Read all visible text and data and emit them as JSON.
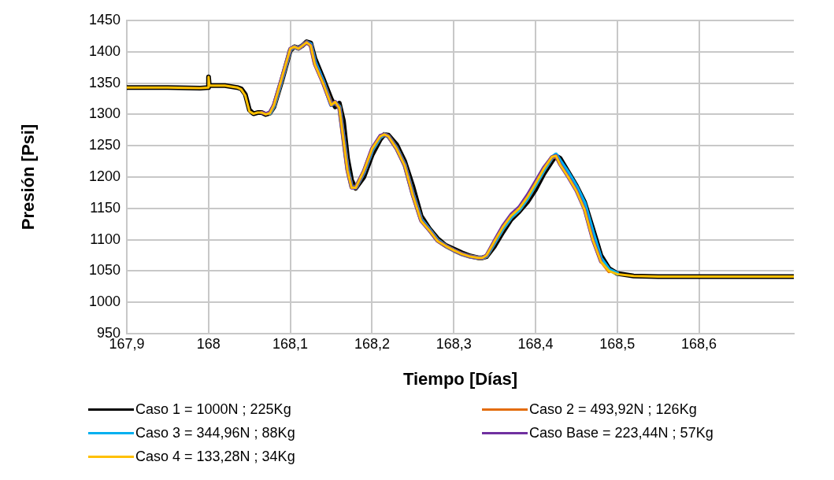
{
  "chart_data": {
    "type": "line",
    "xlabel": "Tiempo [Días]",
    "ylabel": "Presión [Psi]",
    "x": [
      167.9,
      167.95,
      167.99,
      168.0,
      168.0,
      168.001,
      168.02,
      168.035,
      168.04,
      168.045,
      168.05,
      168.055,
      168.06,
      168.065,
      168.07,
      168.075,
      168.08,
      168.09,
      168.1,
      168.105,
      168.11,
      168.115,
      168.12,
      168.125,
      168.13,
      168.14,
      168.15,
      168.155,
      168.16,
      168.165,
      168.17,
      168.175,
      168.18,
      168.19,
      168.2,
      168.21,
      168.215,
      168.22,
      168.23,
      168.24,
      168.25,
      168.26,
      168.27,
      168.28,
      168.29,
      168.3,
      168.31,
      168.32,
      168.33,
      168.335,
      168.34,
      168.35,
      168.36,
      168.37,
      168.38,
      168.39,
      168.4,
      168.41,
      168.42,
      168.425,
      168.43,
      168.44,
      168.45,
      168.46,
      168.47,
      168.48,
      168.49,
      168.5,
      168.52,
      168.55,
      168.6,
      168.65,
      168.716
    ],
    "series": [
      {
        "name": "Caso 1 = 1000N ; 225Kg",
        "color": "#000000",
        "values": [
          1343,
          1343,
          1342,
          1343,
          1360,
          1346,
          1346,
          1343,
          1341,
          1332,
          1307,
          1301,
          1303,
          1303,
          1300,
          1302,
          1312,
          1355,
          1402,
          1408,
          1406,
          1410,
          1416,
          1414,
          1390,
          1358,
          1325,
          1312,
          1318,
          1290,
          1230,
          1195,
          1182,
          1200,
          1235,
          1260,
          1268,
          1267,
          1252,
          1225,
          1185,
          1138,
          1118,
          1102,
          1091,
          1085,
          1079,
          1074,
          1071,
          1071,
          1073,
          1090,
          1112,
          1132,
          1145,
          1160,
          1180,
          1205,
          1225,
          1234,
          1230,
          1208,
          1186,
          1160,
          1118,
          1075,
          1054,
          1046,
          1042,
          1041,
          1041,
          1041,
          1041
        ]
      },
      {
        "name": "Caso 2 = 493,92N ; 126Kg",
        "color": "#e36c0a",
        "values": [
          null,
          null,
          null,
          null,
          null,
          null,
          null,
          null,
          null,
          null,
          null,
          null,
          null,
          null,
          null,
          1302,
          1314,
          1358,
          1404,
          1408,
          1405,
          1410,
          1415,
          1411,
          1382,
          1352,
          1317,
          1318,
          1312,
          1262,
          1212,
          1184,
          1183,
          1208,
          1243,
          1264,
          1268,
          1265,
          1246,
          1219,
          1172,
          1132,
          1116,
          1099,
          1090,
          1083,
          1077,
          1073,
          1071,
          1071,
          1074,
          1096,
          1118,
          1136,
          1148,
          1166,
          1188,
          1211,
          1231,
          1234,
          1222,
          1203,
          1181,
          1152,
          1104,
          1067,
          1050,
          null,
          null,
          null,
          null,
          null,
          null
        ]
      },
      {
        "name": "Caso 3 = 344,96N ; 88Kg",
        "color": "#00b0f0",
        "values": [
          null,
          null,
          null,
          null,
          null,
          null,
          null,
          null,
          null,
          null,
          null,
          null,
          null,
          null,
          null,
          1302,
          1314,
          1358,
          1404,
          1408,
          1405,
          1410,
          1415,
          1412,
          1384,
          1353,
          1315,
          1319,
          1312,
          1263,
          1213,
          1184,
          1183,
          1208,
          1243,
          1264,
          1268,
          1265,
          1246,
          1219,
          1172,
          1132,
          1116,
          1099,
          1090,
          1083,
          1077,
          1073,
          1071,
          1071,
          1074,
          1096,
          1118,
          1136,
          1148,
          1166,
          1188,
          1211,
          1231,
          1236,
          1226,
          1207,
          1185,
          1158,
          1112,
          1070,
          1052,
          1046,
          null,
          null,
          null,
          null,
          null
        ]
      },
      {
        "name": "Caso Base = 223,44N ; 57Kg",
        "color": "#7030a0",
        "values": [
          null,
          null,
          null,
          null,
          null,
          null,
          null,
          null,
          null,
          null,
          null,
          null,
          null,
          1303,
          1301,
          1303,
          1316,
          1360,
          1405,
          1408,
          1405,
          1410,
          1415,
          1410,
          1380,
          1350,
          1315,
          1320,
          1310,
          1260,
          1210,
          1183,
          1183,
          1210,
          1246,
          1266,
          1268,
          1265,
          1245,
          1218,
          1170,
          1130,
          1115,
          1098,
          1090,
          1083,
          1077,
          1073,
          1071,
          1071,
          1075,
          1099,
          1122,
          1140,
          1152,
          1171,
          1193,
          1215,
          1232,
          1234,
          1220,
          1200,
          1178,
          1148,
          1100,
          1065,
          null,
          null,
          null,
          null,
          null,
          null,
          null
        ]
      },
      {
        "name": "Caso 4 = 133,28N ; 34Kg",
        "color": "#ffc000",
        "values": [
          1343,
          1343,
          1342,
          1343,
          1360,
          1346,
          1346,
          1343,
          1340,
          1330,
          1305,
          1301,
          1303,
          1303,
          1300,
          1302,
          1315,
          1360,
          1405,
          1408,
          1405,
          1410,
          1415,
          1410,
          1380,
          1350,
          1315,
          1320,
          1310,
          1260,
          1210,
          1183,
          1183,
          1210,
          1245,
          1265,
          1268,
          1265,
          1245,
          1218,
          1170,
          1130,
          1115,
          1098,
          1090,
          1083,
          1077,
          1073,
          1071,
          1071,
          1075,
          1098,
          1120,
          1138,
          1150,
          1168,
          1190,
          1213,
          1232,
          1234,
          1220,
          1200,
          1178,
          1148,
          1100,
          1065,
          1050,
          1045,
          1042,
          1041,
          1041,
          1041,
          1041
        ]
      }
    ],
    "xlim": [
      167.9,
      168.716
    ],
    "xticks": [
      {
        "value": 167.9,
        "label": "167,9"
      },
      168,
      {
        "value": 168.1,
        "label": "168,1"
      },
      {
        "value": 168.2,
        "label": "168,2"
      },
      {
        "value": 168.3,
        "label": "168,3"
      },
      {
        "value": 168.4,
        "label": "168,4"
      },
      {
        "value": 168.5,
        "label": "168,5"
      },
      {
        "value": 168.6,
        "label": "168,6"
      }
    ],
    "ylim": [
      950,
      1450
    ],
    "yticks": [
      950,
      1000,
      1050,
      1100,
      1150,
      1200,
      1250,
      1300,
      1350,
      1400,
      1450
    ],
    "grid": true,
    "legend": "bottom",
    "marker": "none",
    "line_style": "solid"
  }
}
